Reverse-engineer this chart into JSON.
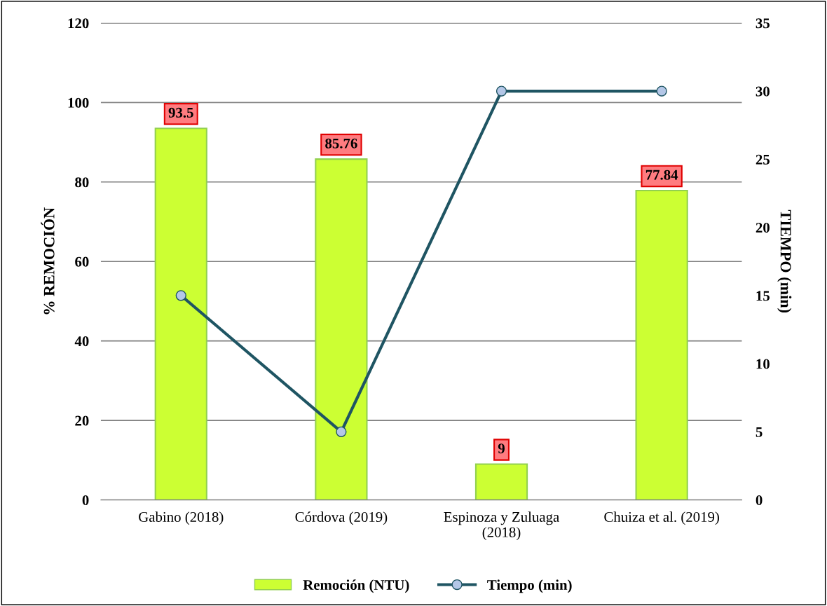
{
  "chart_data": {
    "type": "bar",
    "categories": [
      "Gabino (2018)",
      "Córdova (2019)",
      "Espinoza y Zuluaga\n(2018)",
      "Chuiza et al. (2019)"
    ],
    "series": [
      {
        "name": "Remoción (NTU)",
        "color": "#ccff33",
        "values": [
          93.5,
          85.76,
          9,
          77.84
        ],
        "value_labels": [
          "93.5",
          "85.76",
          "9",
          "77.84"
        ]
      },
      {
        "name": "Tiempo (min)",
        "type": "line",
        "axis": "y2",
        "color": "#1f5563",
        "values": [
          15,
          5,
          30,
          30
        ]
      }
    ],
    "ylabel": "% REMOCIÓN",
    "y2label": "TIEMPO (min)",
    "ylim": [
      0,
      120
    ],
    "yticks": [
      0,
      20,
      40,
      60,
      80,
      100,
      120
    ],
    "y2lim": [
      0,
      35
    ],
    "y2ticks": [
      0,
      5,
      10,
      15,
      20,
      25,
      30,
      35
    ],
    "grid": "y",
    "legend": "bottom",
    "marker": "circle",
    "line_style": "solid"
  }
}
